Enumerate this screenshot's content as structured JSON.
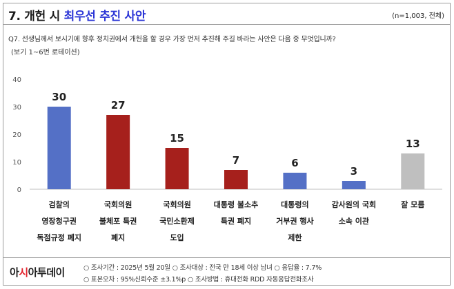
{
  "header": {
    "number_title": "7. 개헌 시",
    "accent_title": "최우선 추진 사안",
    "sample_note": "(n=1,003, 전체)"
  },
  "question": {
    "text": "Q7. 선생님께서 보시기에 향후 정치권에서 개헌을 할 경우 가장 먼저 추진해 주길 바라는 사안은 다음 중 무엇입니까?",
    "note": "(보기 1~6번 로테이션)"
  },
  "chart_data": {
    "type": "bar",
    "title": "",
    "xlabel": "",
    "ylabel": "",
    "ylim": [
      0,
      40
    ],
    "yticks": [
      0,
      10,
      20,
      30,
      40
    ],
    "grid": false,
    "categories": [
      [
        "검찰의",
        "영장청구권",
        "독점규정 폐지"
      ],
      [
        "국회의원",
        "불체포 특권",
        "폐지"
      ],
      [
        "국회의원",
        "국민소환제",
        "도입"
      ],
      [
        "대통령 불소추",
        "특권 폐지"
      ],
      [
        "대통령의",
        "거부권 행사",
        "제한"
      ],
      [
        "감사원의 국회",
        "소속 이관"
      ],
      [
        "잘 모름"
      ]
    ],
    "values": [
      30,
      27,
      15,
      7,
      6,
      3,
      13
    ],
    "colors": [
      "#5470c6",
      "#a6201c",
      "#a6201c",
      "#a6201c",
      "#5470c6",
      "#5470c6",
      "#bfbfbf"
    ]
  },
  "footer": {
    "logo_main": "아",
    "logo_accent": "시",
    "logo_rest": "아투데이",
    "meta_line1": "○ 조사기간 : 2025년 5월 20일 ○ 조사대상 : 전국 만 18세 이상 남녀 ○ 응답율 : 7.7%",
    "meta_line2": "○ 표본오차 : 95%신뢰수준 ±3.1%p ○ 조사방법 : 휴대전화 RDD 자동응답전화조사"
  }
}
